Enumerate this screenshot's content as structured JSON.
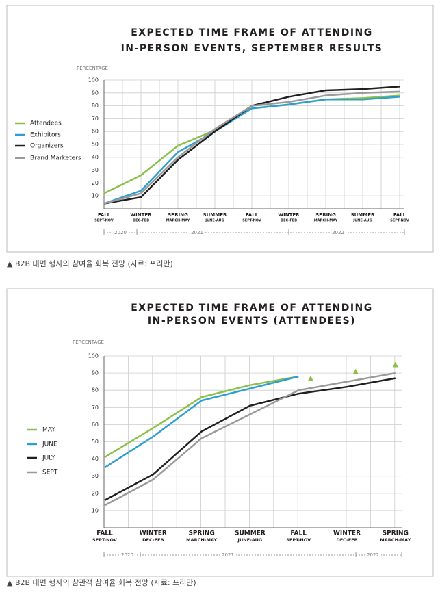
{
  "chart_data": [
    {
      "type": "line",
      "title": [
        "EXPECTED TIME FRAME OF ATTENDING",
        "IN-PERSON EVENTS, SEPTEMBER RESULTS"
      ],
      "y_label": "PERCENTAGE",
      "categories": [
        "FALL",
        "WINTER",
        "SPRING",
        "SUMMER",
        "FALL",
        "WINTER",
        "SPRING",
        "SUMMER",
        "FALL"
      ],
      "category_subs": [
        "SEPT-NOV",
        "DEC-FEB",
        "MARCH-MAY",
        "JUNE-AUG",
        "SEPT-NOV",
        "DEC-FEB",
        "MARCH-MAY",
        "JUNE-AUG",
        "SEPT-NOV"
      ],
      "years": [
        "2020",
        "2021",
        "2022"
      ],
      "ylim": [
        0,
        100
      ],
      "yticks": [
        10,
        20,
        30,
        40,
        50,
        60,
        70,
        80,
        90,
        100
      ],
      "grid": true,
      "series": [
        {
          "name": "Attendees",
          "color": "#8dc04a",
          "values": [
            12,
            26,
            49,
            61,
            78,
            81,
            85,
            86,
            88
          ]
        },
        {
          "name": "Exhibitors",
          "color": "#2ea0d0",
          "values": [
            4,
            14,
            44,
            60,
            78,
            81,
            85,
            85,
            87
          ]
        },
        {
          "name": "Organizers",
          "color": "#231f20",
          "values": [
            4,
            9,
            38,
            60,
            80,
            87,
            92,
            93,
            95
          ]
        },
        {
          "name": "Brand Marketers",
          "color": "#9a9a9a",
          "values": [
            4,
            12,
            40,
            62,
            80,
            83,
            88,
            90,
            91
          ]
        }
      ],
      "caption": "▲ B2B 대면 행사의 참여율 회복 전망 (자료: 프리만)"
    },
    {
      "type": "line",
      "title": [
        "EXPECTED TIME FRAME OF ATTENDING",
        "IN-PERSON EVENTS (ATTENDEES)"
      ],
      "y_label": "PERCENTAGE",
      "categories": [
        "FALL",
        "WINTER",
        "SPRING",
        "SUMMER",
        "FALL",
        "WINTER",
        "SPRING"
      ],
      "category_subs": [
        "SEPT-NOV",
        "DEC-FEB",
        "MARCH-MAY",
        "JUNE-AUG",
        "SEPT-NOV",
        "DEC-FEB",
        "MARCH-MAY"
      ],
      "years": [
        "2020",
        "2021",
        "2022"
      ],
      "ylim": [
        0,
        100
      ],
      "yticks": [
        10,
        20,
        30,
        40,
        50,
        60,
        70,
        80,
        90,
        100
      ],
      "grid": true,
      "series": [
        {
          "name": "MAY",
          "color": "#8dc04a",
          "values": [
            41,
            58,
            76,
            83,
            88,
            null,
            null
          ]
        },
        {
          "name": "JUNE",
          "color": "#2ea0d0",
          "values": [
            35,
            53,
            74,
            81,
            88,
            null,
            null
          ]
        },
        {
          "name": "JULY",
          "color": "#231f20",
          "values": [
            16,
            31,
            56,
            71,
            78,
            82,
            87
          ]
        },
        {
          "name": "SEPT",
          "color": "#9a9a9a",
          "values": [
            13,
            28,
            52,
            66,
            80,
            85,
            90
          ]
        }
      ],
      "markers": {
        "color": "#8dc04a",
        "x": [
          4.25,
          5.18,
          6.0
        ],
        "values": [
          87,
          91,
          95
        ]
      },
      "caption": "▲ B2B 대면 행사의 참관객 참여율 회복 전망 (자료: 프리만)"
    }
  ]
}
